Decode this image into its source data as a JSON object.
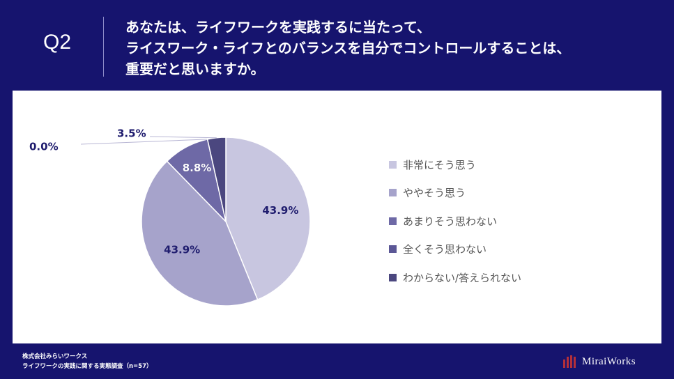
{
  "header": {
    "q_label": "Q2",
    "question_lines": [
      "あなたは、ライフワークを実践するに当たって、",
      "ライスワーク・ライフとのバランスを自分でコントロールすることは、",
      "重要だと思いますか。"
    ]
  },
  "chart_data": {
    "type": "pie",
    "title": "あなたは、ライフワークを実践するに当たって、ライスワーク・ライフとのバランスを自分でコントロールすることは、重要だと思いますか。",
    "start_angle_deg": 0,
    "direction": "clockwise",
    "categories": [
      "非常にそう思う",
      "ややそう思う",
      "あまりそう思わない",
      "全くそう思わない",
      "わからない/答えられない"
    ],
    "values": [
      43.9,
      43.9,
      8.8,
      0.0,
      3.5
    ],
    "labels": [
      "43.9%",
      "43.9%",
      "8.8%",
      "0.0%",
      "3.5%"
    ],
    "colors": [
      "#c8c6e0",
      "#a6a3cb",
      "#6e69a6",
      "#5b5796",
      "#4b477f"
    ],
    "legend_position": "right"
  },
  "footer": {
    "company": "株式会社みらいワークス",
    "survey": "ライフワークの実践に関する実態調査（n=57）",
    "brand_name": "MiraiWorks"
  }
}
